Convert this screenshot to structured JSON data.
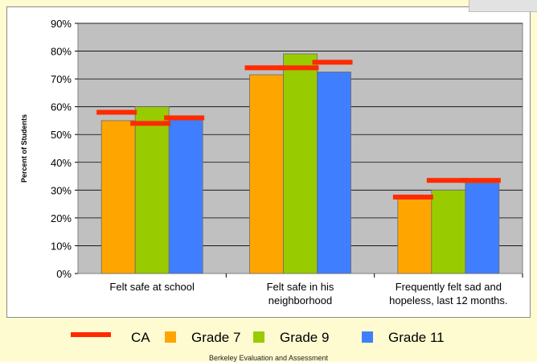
{
  "chart_data": {
    "type": "bar",
    "title": "",
    "xlabel": "",
    "ylabel": "Percent of Students",
    "ylim": [
      0,
      90
    ],
    "yticks": [
      "0%",
      "10%",
      "20%",
      "30%",
      "40%",
      "50%",
      "60%",
      "70%",
      "80%",
      "90%"
    ],
    "categories": [
      [
        "Felt  safe at school"
      ],
      [
        "Felt safe in his",
        "neighborhood"
      ],
      [
        "Frequently felt sad and",
        "hopeless, last 12 months."
      ]
    ],
    "series": [
      {
        "name": "Grade 7",
        "color": "#ffa500",
        "values": [
          55,
          71.5,
          27
        ]
      },
      {
        "name": "Grade 9",
        "color": "#99cc00",
        "values": [
          60,
          79,
          30
        ]
      },
      {
        "name": "Grade 11",
        "color": "#3f7fff",
        "values": [
          55.5,
          72.5,
          32.5
        ]
      }
    ],
    "reference": {
      "name": "CA",
      "color": "#ff2a00",
      "values": [
        [
          58,
          54,
          56
        ],
        [
          74,
          74,
          76
        ],
        [
          27.5,
          33.5,
          33.5
        ]
      ]
    },
    "grid": true,
    "plot_background": "#c0c0c0",
    "legend_position": "bottom"
  },
  "footer": "Berkeley Evaluation and Assessment"
}
